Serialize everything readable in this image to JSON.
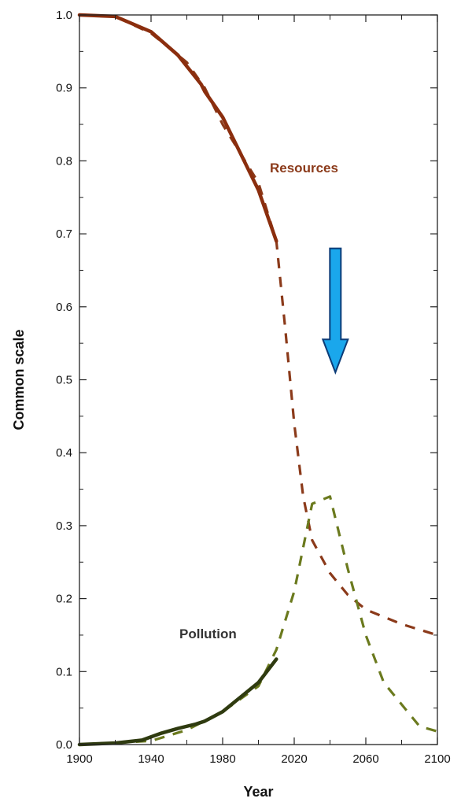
{
  "chart_data": {
    "type": "line",
    "title": "",
    "xlabel": "Year",
    "ylabel": "Common scale",
    "xlim": [
      1900,
      2100
    ],
    "ylim": [
      0.0,
      1.0
    ],
    "x_ticks": [
      "1900",
      "1940",
      "1980",
      "2020",
      "2060",
      "2100"
    ],
    "y_ticks": [
      "0.0",
      "0.1",
      "0.2",
      "0.3",
      "0.4",
      "0.5",
      "0.6",
      "0.7",
      "0.8",
      "0.9",
      "1.0"
    ],
    "grid": false,
    "series": [
      {
        "name": "Resources",
        "color": "#8b3a1a",
        "modelled_dashed": [
          [
            1900,
            1.0
          ],
          [
            1920,
            0.998
          ],
          [
            1940,
            0.975
          ],
          [
            1960,
            0.935
          ],
          [
            1970,
            0.9
          ],
          [
            1980,
            0.85
          ],
          [
            1990,
            0.81
          ],
          [
            2000,
            0.77
          ],
          [
            2010,
            0.69
          ],
          [
            2015,
            0.57
          ],
          [
            2020,
            0.44
          ],
          [
            2025,
            0.34
          ],
          [
            2030,
            0.28
          ],
          [
            2040,
            0.235
          ],
          [
            2050,
            0.205
          ],
          [
            2060,
            0.185
          ],
          [
            2080,
            0.165
          ],
          [
            2100,
            0.15
          ]
        ],
        "observed_solid": [
          [
            1900,
            1.0
          ],
          [
            1920,
            0.998
          ],
          [
            1940,
            0.977
          ],
          [
            1955,
            0.945
          ],
          [
            1968,
            0.905
          ],
          [
            1970,
            0.895
          ],
          [
            1980,
            0.86
          ],
          [
            1990,
            0.81
          ],
          [
            2000,
            0.76
          ],
          [
            2010,
            0.69
          ]
        ]
      },
      {
        "name": "Pollution",
        "color": "#6b7a1e",
        "modelled_dashed": [
          [
            1900,
            0.0
          ],
          [
            1940,
            0.005
          ],
          [
            1960,
            0.02
          ],
          [
            1980,
            0.045
          ],
          [
            2000,
            0.08
          ],
          [
            2010,
            0.13
          ],
          [
            2020,
            0.21
          ],
          [
            2030,
            0.33
          ],
          [
            2040,
            0.34
          ],
          [
            2050,
            0.24
          ],
          [
            2060,
            0.15
          ],
          [
            2070,
            0.085
          ],
          [
            2080,
            0.055
          ],
          [
            2090,
            0.025
          ],
          [
            2100,
            0.018
          ]
        ],
        "observed_solid": [
          [
            1900,
            0.0
          ],
          [
            1920,
            0.002
          ],
          [
            1935,
            0.006
          ],
          [
            1945,
            0.015
          ],
          [
            1955,
            0.022
          ],
          [
            1965,
            0.028
          ],
          [
            1970,
            0.032
          ],
          [
            1980,
            0.045
          ],
          [
            1990,
            0.065
          ],
          [
            2000,
            0.085
          ],
          [
            2010,
            0.117
          ]
        ]
      }
    ],
    "annotations": [
      {
        "type": "arrow",
        "direction": "down",
        "color": "#1aa7ec",
        "x": 2043,
        "y_from": 0.68,
        "y_to": 0.51
      }
    ]
  }
}
